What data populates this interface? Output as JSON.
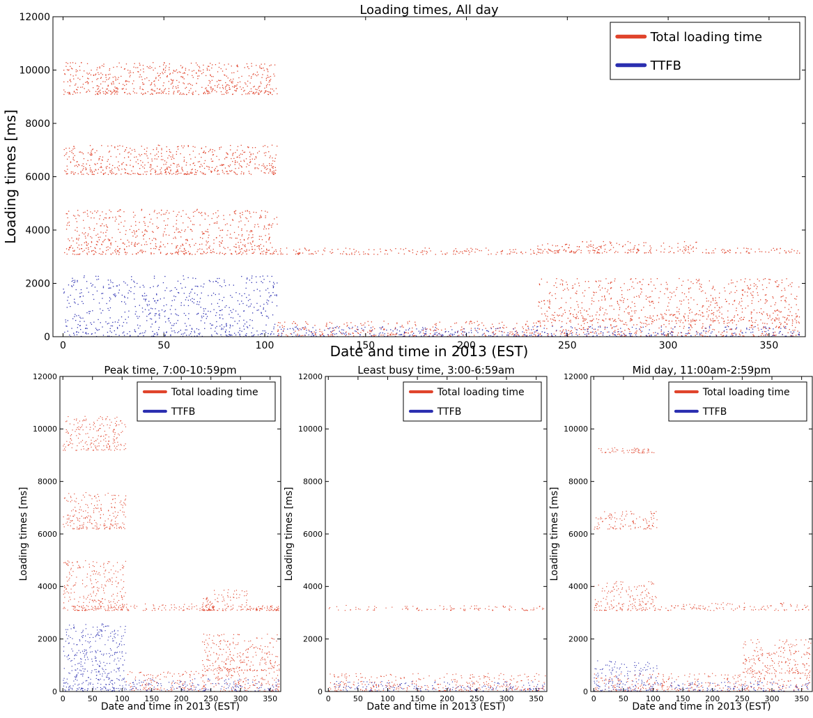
{
  "colors": {
    "total": "#e0432b",
    "ttfb": "#2b2fb0",
    "axis": "#000000",
    "background": "#ffffff"
  },
  "chart_data": [
    {
      "type": "scatter",
      "title": "Loading times, All day",
      "xlabel": "Date and time in 2013 (EST)",
      "ylabel": "Loading times [ms]",
      "xlim": [
        -5,
        368
      ],
      "ylim": [
        0,
        12000
      ],
      "xticks": [
        "0",
        "50",
        "100",
        "150",
        "200",
        "250",
        "300",
        "350"
      ],
      "yticks": [
        "0",
        "2000",
        "4000",
        "6000",
        "8000",
        "10000",
        "12000"
      ],
      "legend_position": "top-right",
      "grid": false,
      "series": [
        {
          "name": "Total loading time",
          "color_key": "total",
          "bands": [
            {
              "x": [
                0,
                106
              ],
              "y": [
                3100,
                4800
              ]
            },
            {
              "x": [
                106,
                235
              ],
              "y": [
                3100,
                3350
              ]
            },
            {
              "x": [
                235,
                255
              ],
              "y": [
                3150,
                3500
              ]
            },
            {
              "x": [
                255,
                315
              ],
              "y": [
                3150,
                3600
              ]
            },
            {
              "x": [
                315,
                365
              ],
              "y": [
                3150,
                3350
              ]
            },
            {
              "x": [
                0,
                106
              ],
              "y": [
                6100,
                7200
              ]
            },
            {
              "x": [
                0,
                106
              ],
              "y": [
                9100,
                10300
              ]
            },
            {
              "x": [
                106,
                365
              ],
              "y": [
                0,
                600
              ]
            },
            {
              "x": [
                235,
                365
              ],
              "y": [
                600,
                2200
              ]
            }
          ]
        },
        {
          "name": "TTFB",
          "color_key": "ttfb",
          "bands": [
            {
              "x": [
                0,
                106
              ],
              "y": [
                0,
                2300
              ]
            },
            {
              "x": [
                106,
                365
              ],
              "y": [
                0,
                400
              ]
            }
          ]
        }
      ]
    },
    {
      "type": "scatter",
      "title": "Peak time, 7:00-10:59pm",
      "xlabel": "Date and time in 2013 (EST)",
      "ylabel": "Loading times [ms]",
      "xlim": [
        -5,
        368
      ],
      "ylim": [
        0,
        12000
      ],
      "xticks": [
        "0",
        "50",
        "100",
        "150",
        "200",
        "250",
        "300",
        "350"
      ],
      "yticks": [
        "0",
        "2000",
        "4000",
        "6000",
        "8000",
        "10000",
        "12000"
      ],
      "legend_position": "top-right",
      "grid": false,
      "series": [
        {
          "name": "Total loading time",
          "color_key": "total",
          "bands": [
            {
              "x": [
                0,
                106
              ],
              "y": [
                3100,
                5000
              ]
            },
            {
              "x": [
                106,
                235
              ],
              "y": [
                3100,
                3350
              ]
            },
            {
              "x": [
                235,
                255
              ],
              "y": [
                3100,
                3600
              ]
            },
            {
              "x": [
                255,
                315
              ],
              "y": [
                3100,
                3900
              ]
            },
            {
              "x": [
                315,
                365
              ],
              "y": [
                3100,
                3300
              ]
            },
            {
              "x": [
                0,
                106
              ],
              "y": [
                6200,
                7600
              ]
            },
            {
              "x": [
                0,
                106
              ],
              "y": [
                9200,
                10500
              ]
            },
            {
              "x": [
                106,
                365
              ],
              "y": [
                0,
                800
              ]
            },
            {
              "x": [
                235,
                365
              ],
              "y": [
                800,
                2200
              ]
            }
          ]
        },
        {
          "name": "TTFB",
          "color_key": "ttfb",
          "bands": [
            {
              "x": [
                0,
                106
              ],
              "y": [
                0,
                2600
              ]
            },
            {
              "x": [
                106,
                365
              ],
              "y": [
                0,
                500
              ]
            }
          ]
        }
      ]
    },
    {
      "type": "scatter",
      "title": "Least busy time, 3:00-6:59am",
      "xlabel": "Date and time in 2013 (EST)",
      "ylabel": "Loading times [ms]",
      "xlim": [
        -5,
        368
      ],
      "ylim": [
        0,
        12000
      ],
      "xticks": [
        "0",
        "50",
        "100",
        "150",
        "200",
        "250",
        "300",
        "350"
      ],
      "yticks": [
        "0",
        "2000",
        "4000",
        "6000",
        "8000",
        "10000",
        "12000"
      ],
      "legend_position": "top-right",
      "grid": false,
      "series": [
        {
          "name": "Total loading time",
          "color_key": "total",
          "bands": [
            {
              "x": [
                0,
                365
              ],
              "y": [
                3100,
                3300
              ]
            },
            {
              "x": [
                0,
                365
              ],
              "y": [
                0,
                700
              ]
            }
          ]
        },
        {
          "name": "TTFB",
          "color_key": "ttfb",
          "bands": [
            {
              "x": [
                0,
                365
              ],
              "y": [
                0,
                400
              ]
            }
          ]
        }
      ]
    },
    {
      "type": "scatter",
      "title": "Mid day, 11:00am-2:59pm",
      "xlabel": "Date and time in 2013 (EST)",
      "ylabel": "Loading times [ms]",
      "xlim": [
        -5,
        368
      ],
      "ylim": [
        0,
        12000
      ],
      "xticks": [
        "0",
        "50",
        "100",
        "150",
        "200",
        "250",
        "300",
        "350"
      ],
      "yticks": [
        "0",
        "2000",
        "4000",
        "6000",
        "8000",
        "10000",
        "12000"
      ],
      "legend_position": "top-right",
      "grid": false,
      "series": [
        {
          "name": "Total loading time",
          "color_key": "total",
          "bands": [
            {
              "x": [
                0,
                106
              ],
              "y": [
                3100,
                4200
              ]
            },
            {
              "x": [
                106,
                365
              ],
              "y": [
                3100,
                3400
              ]
            },
            {
              "x": [
                0,
                106
              ],
              "y": [
                6200,
                6900
              ]
            },
            {
              "x": [
                0,
                106
              ],
              "y": [
                9100,
                9300
              ]
            },
            {
              "x": [
                0,
                365
              ],
              "y": [
                0,
                700
              ]
            },
            {
              "x": [
                250,
                365
              ],
              "y": [
                700,
                2000
              ]
            }
          ]
        },
        {
          "name": "TTFB",
          "color_key": "ttfb",
          "bands": [
            {
              "x": [
                0,
                106
              ],
              "y": [
                0,
                1200
              ]
            },
            {
              "x": [
                106,
                365
              ],
              "y": [
                0,
                400
              ]
            }
          ]
        }
      ]
    }
  ]
}
